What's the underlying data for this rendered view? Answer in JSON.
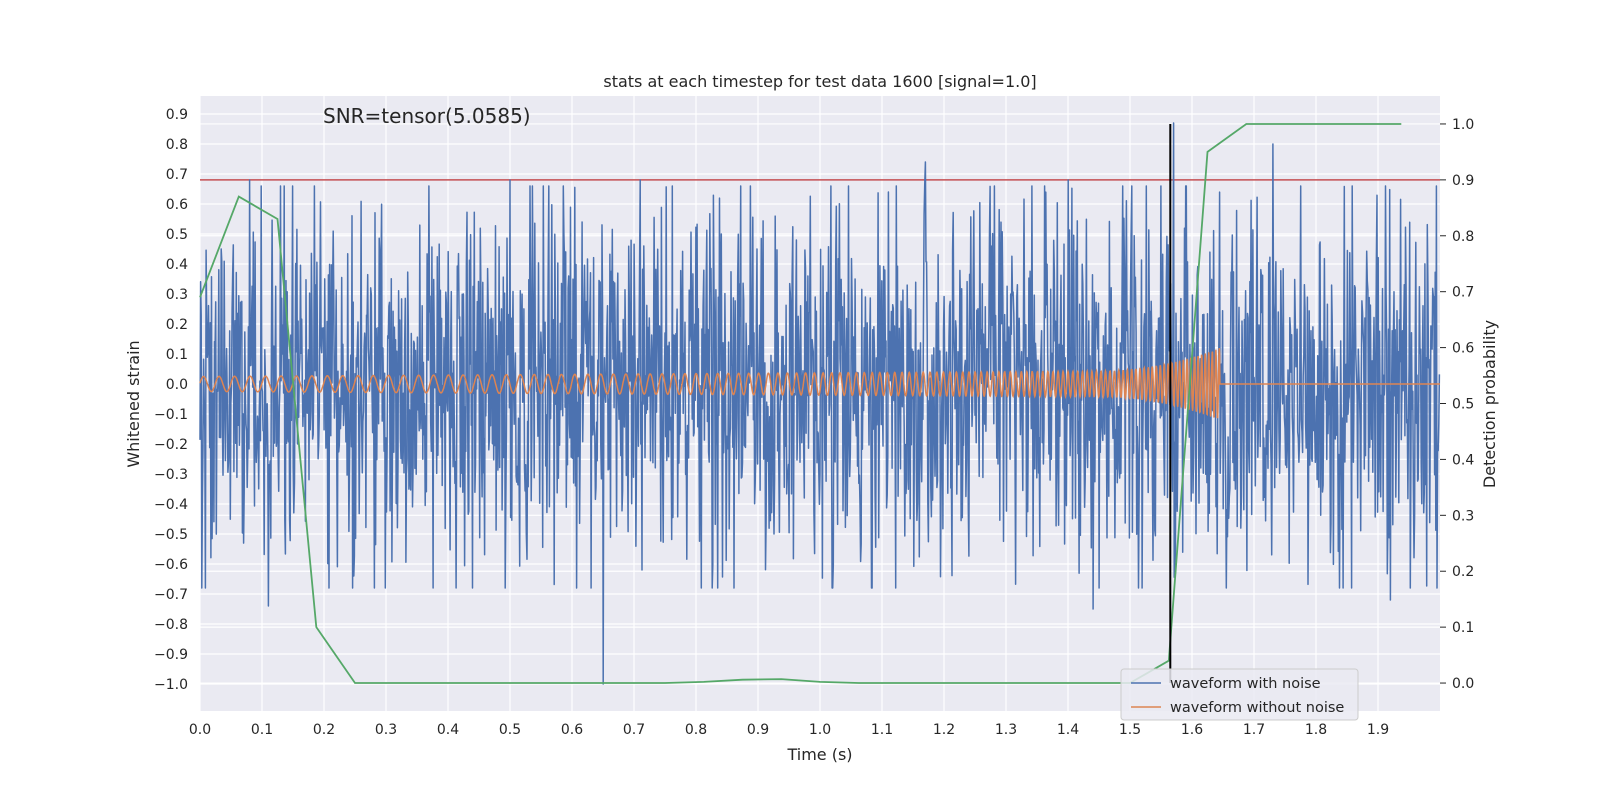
{
  "chart_data": {
    "type": "line",
    "title": "stats at each timestep for test data 1600 [signal=1.0]",
    "xlabel": "Time (s)",
    "ylabel": "Whitened strain",
    "y2label": "Detection probability",
    "xlim": [
      0.0,
      2.0
    ],
    "ylim": [
      -1.09,
      0.96
    ],
    "y2lim": [
      -0.05,
      1.05
    ],
    "xticks": [
      "0.0",
      "0.1",
      "0.2",
      "0.3",
      "0.4",
      "0.5",
      "0.6",
      "0.7",
      "0.8",
      "0.9",
      "1.0",
      "1.1",
      "1.2",
      "1.3",
      "1.4",
      "1.5",
      "1.6",
      "1.7",
      "1.8",
      "1.9"
    ],
    "yticks": [
      "0.9",
      "0.8",
      "0.7",
      "0.6",
      "0.5",
      "0.4",
      "0.3",
      "0.2",
      "0.1",
      "0.0",
      "−0.1",
      "−0.2",
      "−0.3",
      "−0.4",
      "−0.5",
      "−0.6",
      "−0.7",
      "−0.8",
      "−0.9",
      "−1.0"
    ],
    "y2ticks": [
      "1.0",
      "0.9",
      "0.8",
      "0.7",
      "0.6",
      "0.5",
      "0.4",
      "0.3",
      "0.2",
      "0.1",
      "0.0"
    ],
    "grid": true,
    "legend_position": "lower-right",
    "annotation": "SNR=tensor(5.0585)",
    "threshold": {
      "y2": 0.9,
      "color": "#c44e52"
    },
    "merger_marker": {
      "x": 1.565,
      "y2_range": [
        0.0,
        1.0
      ],
      "color": "#000000"
    },
    "series": [
      {
        "name": "waveform with noise",
        "color": "#4c72b0",
        "axis": "left",
        "noise_amplitude": 0.3,
        "spikes": [
          {
            "x": 0.08,
            "y": 0.68
          },
          {
            "x": 0.13,
            "y": 0.66
          },
          {
            "x": 0.11,
            "y": -0.74
          },
          {
            "x": 0.65,
            "y": -1.0
          },
          {
            "x": 0.71,
            "y": 0.68
          },
          {
            "x": 1.17,
            "y": 0.74
          },
          {
            "x": 1.57,
            "y": 0.87
          },
          {
            "x": 1.73,
            "y": 0.8
          },
          {
            "x": 1.44,
            "y": -0.75
          },
          {
            "x": 1.92,
            "y": -0.72
          },
          {
            "x": 0.5,
            "y": 0.68
          },
          {
            "x": 1.4,
            "y": 0.68
          }
        ]
      },
      {
        "name": "waveform without noise",
        "color": "#dd8452",
        "axis": "left",
        "chirp": {
          "start_freq_hz": 40,
          "end_freq_hz": 180,
          "start_amp": 0.025,
          "peak_amp": 0.12,
          "end_time": 1.645
        }
      },
      {
        "name": "",
        "color": "#55a868",
        "axis": "right",
        "x": [
          0.0,
          0.0625,
          0.125,
          0.1875,
          0.25,
          0.3125,
          0.5,
          0.75,
          0.8125,
          0.875,
          0.9375,
          1.0,
          1.0625,
          1.25,
          1.5,
          1.5625,
          1.625,
          1.6875,
          1.75,
          1.9375
        ],
        "y": [
          0.69,
          0.87,
          0.83,
          0.1,
          0.0,
          0.0,
          0.0,
          0.0,
          0.002,
          0.006,
          0.007,
          0.002,
          0.0,
          0.0,
          0.0,
          0.04,
          0.95,
          1.0,
          1.0,
          1.0
        ]
      }
    ]
  }
}
